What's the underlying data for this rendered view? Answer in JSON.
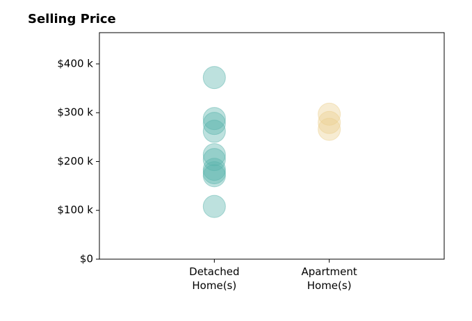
{
  "chart_data": {
    "type": "strip",
    "title": "Selling Price",
    "categories": [
      "Detached\nHome(s)",
      "Apartment\nHome(s)"
    ],
    "values": [
      [
        372000,
        288000,
        278000,
        262000,
        214000,
        204000,
        184000,
        177000,
        171000,
        108000
      ],
      [
        297000,
        280000,
        266000
      ]
    ],
    "colors": [
      "#5ab4ac",
      "#ecd08f"
    ],
    "ylim": [
      0,
      464000
    ],
    "yticks": [
      {
        "value": 0,
        "label": "$0"
      },
      {
        "value": 100000,
        "label": "$100 k"
      },
      {
        "value": 200000,
        "label": "$200 k"
      },
      {
        "value": 300000,
        "label": "$300 k"
      },
      {
        "value": 400000,
        "label": "$400 k"
      }
    ]
  }
}
